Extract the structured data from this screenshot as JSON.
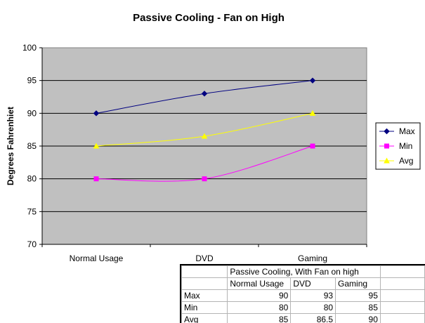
{
  "chart_data": {
    "type": "line",
    "title": "Passive Cooling - Fan on High",
    "xlabel": "",
    "ylabel": "Degrees Fahrenhiet",
    "categories": [
      "Normal Usage",
      "DVD",
      "Gaming"
    ],
    "ylim": [
      70,
      100
    ],
    "yticks": [
      70,
      75,
      80,
      85,
      90,
      95,
      100
    ],
    "grid": true,
    "legend_position": "right",
    "series": [
      {
        "name": "Max",
        "values": [
          90,
          93,
          95
        ],
        "color": "#000080",
        "marker": "diamond"
      },
      {
        "name": "Min",
        "values": [
          80,
          80,
          85
        ],
        "color": "#ff00ff",
        "marker": "square"
      },
      {
        "name": "Avg",
        "values": [
          85,
          86.5,
          90
        ],
        "color": "#ffff00",
        "marker": "triangle"
      }
    ],
    "plot_background": "#c0c0c0"
  },
  "table": {
    "title": "Passive Cooling, With Fan on high",
    "headers": [
      "Normal Usage",
      "DVD",
      "Gaming"
    ],
    "rows": [
      {
        "label": "Max",
        "values": [
          "90",
          "93",
          "95"
        ]
      },
      {
        "label": "Min",
        "values": [
          "80",
          "80",
          "85"
        ]
      },
      {
        "label": "Avg",
        "values": [
          "85",
          "86.5",
          "90"
        ]
      }
    ]
  }
}
